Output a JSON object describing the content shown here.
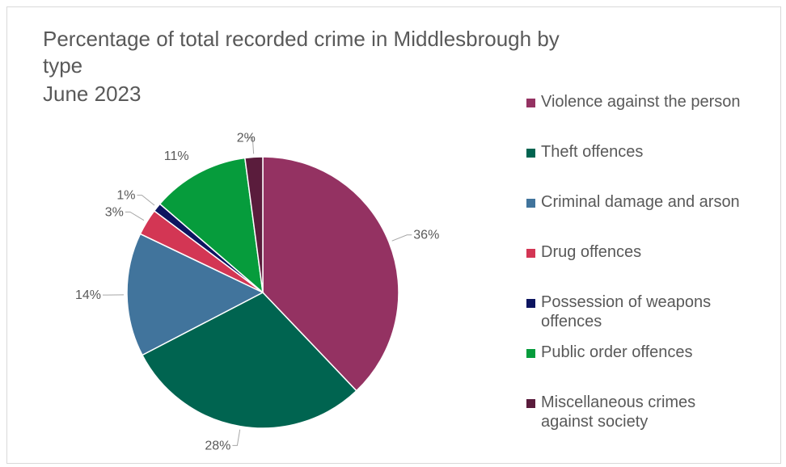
{
  "chart_data": {
    "type": "pie",
    "title_lines": [
      "Percentage of total recorded crime in Middlesbrough by",
      "type",
      "June 2023"
    ],
    "categories": [
      "Violence against the person",
      "Theft offences",
      "Criminal damage and arson",
      "Drug offences",
      "Possession of weapons offences",
      "Public order offences",
      "Miscellaneous crimes against society"
    ],
    "values": [
      36,
      28,
      14,
      3,
      1,
      11,
      2
    ],
    "data_labels": [
      "36%",
      "28%",
      "14%",
      "3%",
      "1%",
      "11%",
      "2%"
    ],
    "colors": [
      "#943262",
      "#006450",
      "#41749C",
      "#D33654",
      "#0D1560",
      "#069C3C",
      "#5A1C3C"
    ],
    "legend_position": "right"
  }
}
